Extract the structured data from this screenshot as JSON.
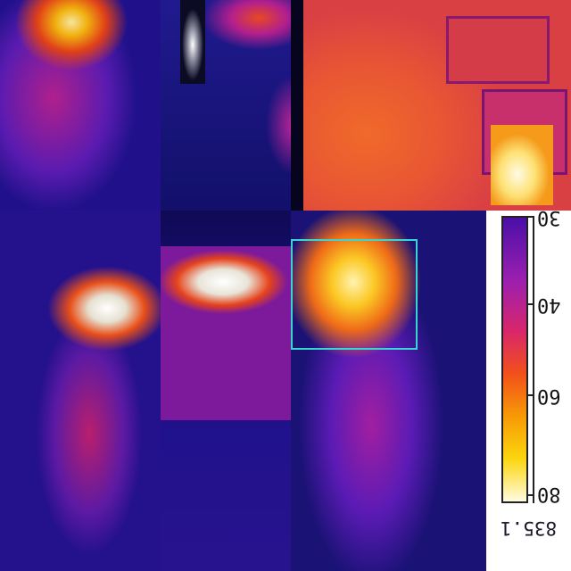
{
  "image": {
    "description_colors": {
      "background": "#07051e",
      "roi": "#38d6d0"
    }
  },
  "scale": {
    "tick_labels": [
      "30",
      "40",
      "60",
      "80"
    ],
    "reading": "835.1"
  },
  "tiles": [
    {
      "name": "tile-top-left-smoke"
    },
    {
      "name": "tile-top-middle-smoke"
    },
    {
      "name": "tile-top-right-building"
    },
    {
      "name": "tile-bottom-left-flames"
    },
    {
      "name": "tile-bottom-middle-flames"
    },
    {
      "name": "tile-bottom-right-fire-column"
    }
  ]
}
